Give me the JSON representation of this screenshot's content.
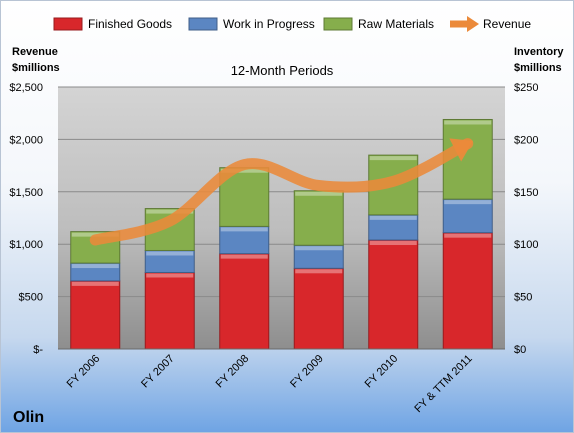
{
  "chart_data": {
    "type": "bar",
    "stacked": true,
    "subtitle": "12-Month Periods",
    "company": "Olin",
    "y_left_label": [
      "Revenue",
      "$millions"
    ],
    "y_right_label": [
      "Inventory",
      "$millions"
    ],
    "categories": [
      "FY 2006",
      "FY 2007",
      "FY 2008",
      "FY 2009",
      "FY 2010",
      "FY & TTM 2011"
    ],
    "series": [
      {
        "name": "Finished Goods",
        "color": "#d8272b",
        "values": [
          65,
          73,
          91,
          77,
          104,
          111
        ]
      },
      {
        "name": "Work in Progress",
        "color": "#5b86c2",
        "values": [
          17,
          21,
          26,
          22,
          24,
          32
        ]
      },
      {
        "name": "Raw Materials",
        "color": "#86ae4c",
        "values": [
          30,
          40,
          56,
          52,
          57,
          76
        ]
      }
    ],
    "line_series": {
      "name": "Revenue",
      "color": "#eb8a3a",
      "values": [
        1040,
        1220,
        1760,
        1560,
        1600,
        1960
      ]
    },
    "y_left_ticks": [
      "$-",
      "$500",
      "$1,000",
      "$1,500",
      "$2,000",
      "$2,500"
    ],
    "y_left_range": [
      0,
      2500
    ],
    "y_right_ticks": [
      "$0",
      "$50",
      "$100",
      "$150",
      "$200",
      "$250"
    ],
    "y_right_range": [
      0,
      250
    ],
    "grid": true,
    "legend_position": "top"
  }
}
